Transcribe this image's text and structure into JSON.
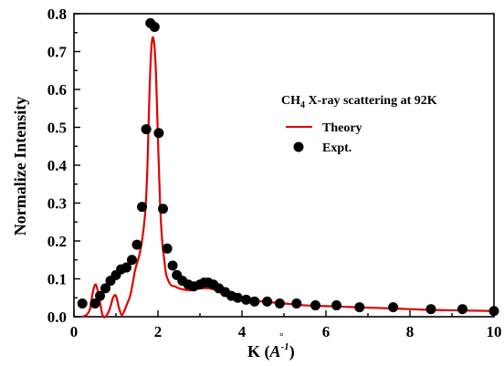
{
  "chart_data": {
    "type": "line",
    "title": "",
    "annotation": {
      "prefix": "CH",
      "subscript": "4",
      "suffix": " X-ray scattering at 92K"
    },
    "xlabel": {
      "prefix": "K (",
      "unit_base": "A",
      "unit_ring": "°",
      "unit_sup": "-1",
      "suffix": ")"
    },
    "ylabel": "Normalize Intensity",
    "xlim": [
      0,
      10
    ],
    "ylim": [
      0,
      0.8
    ],
    "xticks": [
      "0",
      "2",
      "4",
      "6",
      "8",
      "10"
    ],
    "yticks": [
      "0.0",
      "0.1",
      "0.2",
      "0.3",
      "0.4",
      "0.5",
      "0.6",
      "0.7",
      "0.8"
    ],
    "grid": false,
    "legend_position": "right",
    "series": [
      {
        "name": "Theory",
        "kind": "line",
        "color": "#e00000",
        "x": [
          0.2,
          0.3,
          0.38,
          0.45,
          0.52,
          0.6,
          0.68,
          0.75,
          0.85,
          0.93,
          1.0,
          1.08,
          1.15,
          1.25,
          1.35,
          1.45,
          1.55,
          1.62,
          1.7,
          1.75,
          1.8,
          1.85,
          1.9,
          1.95,
          2.0,
          2.05,
          2.1,
          2.15,
          2.2,
          2.3,
          2.4,
          2.5,
          2.6,
          2.8,
          3.0,
          3.2,
          3.4,
          3.6,
          3.8,
          4.0,
          4.5,
          5.0,
          5.5,
          6.0,
          6.5,
          7.0,
          7.5,
          8.0,
          8.5,
          9.0,
          9.5,
          10.0
        ],
        "y": [
          0.0,
          0.005,
          0.02,
          0.065,
          0.085,
          0.05,
          0.005,
          0.0,
          0.02,
          0.05,
          0.055,
          0.02,
          0.005,
          0.03,
          0.06,
          0.12,
          0.16,
          0.2,
          0.28,
          0.4,
          0.6,
          0.72,
          0.73,
          0.65,
          0.47,
          0.3,
          0.2,
          0.15,
          0.11,
          0.085,
          0.08,
          0.075,
          0.072,
          0.07,
          0.075,
          0.075,
          0.07,
          0.06,
          0.05,
          0.045,
          0.04,
          0.035,
          0.03,
          0.028,
          0.026,
          0.024,
          0.022,
          0.02,
          0.018,
          0.017,
          0.016,
          0.015
        ]
      },
      {
        "name": "Expt.",
        "kind": "scatter",
        "color": "#000000",
        "x": [
          0.2,
          0.5,
          0.62,
          0.75,
          0.87,
          1.0,
          1.12,
          1.25,
          1.38,
          1.5,
          1.62,
          1.72,
          1.82,
          1.92,
          2.02,
          2.12,
          2.22,
          2.35,
          2.45,
          2.58,
          2.72,
          2.85,
          3.0,
          3.1,
          3.2,
          3.32,
          3.45,
          3.6,
          3.75,
          3.9,
          4.1,
          4.3,
          4.6,
          4.9,
          5.3,
          5.75,
          6.25,
          6.8,
          7.6,
          8.5,
          9.25,
          10.0
        ],
        "y": [
          0.035,
          0.035,
          0.055,
          0.075,
          0.095,
          0.11,
          0.125,
          0.13,
          0.15,
          0.19,
          0.29,
          0.495,
          0.775,
          0.765,
          0.485,
          0.285,
          0.18,
          0.135,
          0.11,
          0.095,
          0.085,
          0.08,
          0.085,
          0.09,
          0.09,
          0.085,
          0.075,
          0.065,
          0.055,
          0.05,
          0.045,
          0.04,
          0.04,
          0.035,
          0.035,
          0.03,
          0.03,
          0.025,
          0.025,
          0.02,
          0.02,
          0.015
        ]
      }
    ]
  }
}
